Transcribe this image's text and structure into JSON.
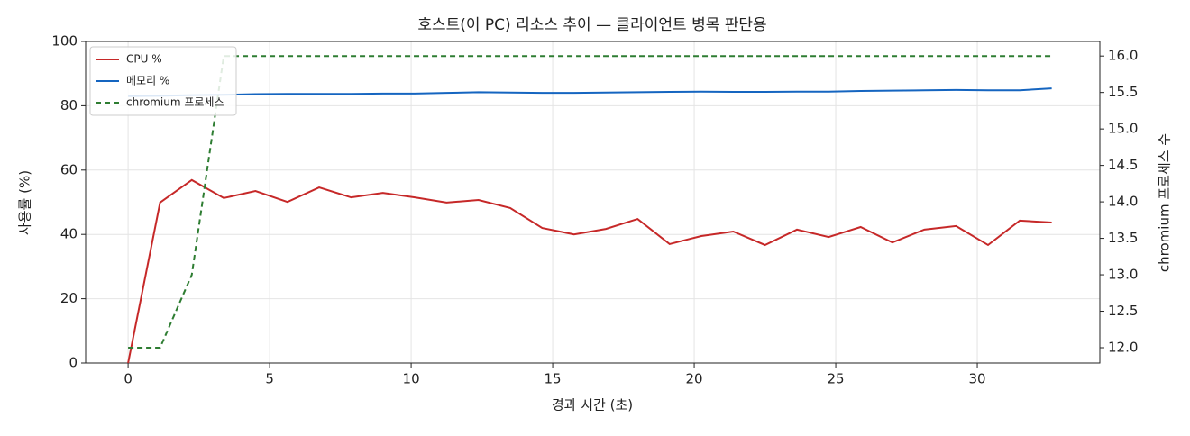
{
  "chart_data": {
    "type": "line",
    "title": "호스트(이 PC) 리소스 추이 — 클라이언트 병목 판단용",
    "x_label": "경과 시간 (초)",
    "y_label": "사용률 (%)",
    "y2_label": "chromium 프로세스 수",
    "x": [
      0,
      1.13,
      2.25,
      3.38,
      4.5,
      5.63,
      6.75,
      7.88,
      9.0,
      10.13,
      11.25,
      12.38,
      13.5,
      14.63,
      15.75,
      16.88,
      18.0,
      19.13,
      20.25,
      21.38,
      22.5,
      23.63,
      24.75,
      25.88,
      27.0,
      28.13,
      29.25,
      30.38,
      31.5,
      32.63
    ],
    "series": [
      {
        "name": "CPU %",
        "color": "#c62828",
        "dash": false,
        "values": [
          0,
          49.9,
          56.9,
          51.3,
          53.5,
          50.1,
          54.6,
          51.5,
          52.9,
          51.5,
          49.9,
          50.7,
          48.2,
          42,
          40,
          41.7,
          44.8,
          37,
          39.5,
          40.9,
          36.7,
          41.5,
          39.2,
          42.3,
          37.5,
          41.5,
          42.6,
          36.7,
          44.3,
          43.7
        ]
      },
      {
        "name": "메모리 %",
        "color": "#1565c0",
        "dash": false,
        "values": [
          83,
          83.1,
          83.3,
          83.4,
          83.6,
          83.7,
          83.7,
          83.7,
          83.8,
          83.8,
          84,
          84.2,
          84.1,
          84,
          84,
          84.1,
          84.2,
          84.3,
          84.4,
          84.3,
          84.3,
          84.4,
          84.4,
          84.6,
          84.7,
          84.8,
          84.9,
          84.8,
          84.8,
          85.4
        ]
      },
      {
        "name": "chromium 프로세스",
        "color": "#2e7d32",
        "dash": true,
        "axis": "y2",
        "values": [
          12,
          12,
          13,
          16,
          16,
          16,
          16,
          16,
          16,
          16,
          16,
          16,
          16,
          16,
          16,
          16,
          16,
          16,
          16,
          16,
          16,
          16,
          16,
          16,
          16,
          16,
          16,
          16,
          16,
          16
        ]
      }
    ],
    "xlim": [
      -1.5,
      34.33
    ],
    "xticks": [
      0,
      5,
      10,
      15,
      20,
      25,
      30
    ],
    "ylim": [
      0,
      100
    ],
    "yticks": [
      0,
      20,
      40,
      60,
      80,
      100
    ],
    "y2lim": [
      11.79,
      16.2
    ],
    "y2ticks": [
      {
        "value": 12,
        "label": "12.0"
      },
      12.5,
      {
        "value": 13,
        "label": "13.0"
      },
      13.5,
      {
        "value": 14,
        "label": "14.0"
      },
      14.5,
      {
        "value": 15,
        "label": "15.0"
      },
      15.5,
      {
        "value": 16,
        "label": "16.0"
      }
    ],
    "grid": true,
    "legend": "upper-left"
  }
}
